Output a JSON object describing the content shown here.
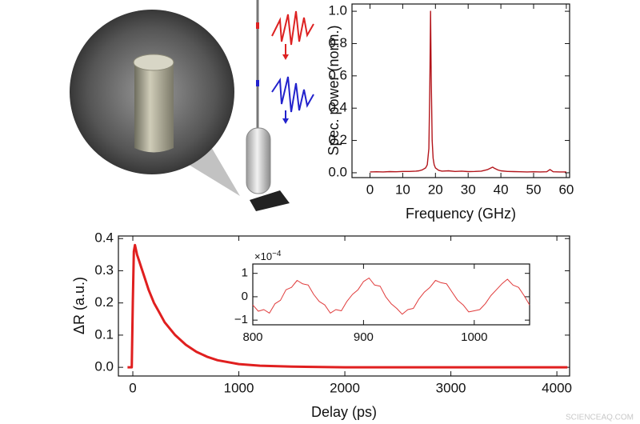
{
  "chart_data": [
    {
      "type": "line",
      "x_label": "Frequency (GHz)",
      "y_label": "Spec. power (norm.)",
      "color": "#b3151b",
      "xlim": [
        -5.5,
        61
      ],
      "ylim": [
        -0.03,
        1.045
      ],
      "xticks": [
        0,
        10,
        20,
        30,
        40,
        50,
        60
      ],
      "yticks": [
        {
          "value": 0,
          "label": "0.0"
        },
        0.2,
        0.4,
        0.6,
        0.8,
        {
          "value": 1,
          "label": "1.0"
        }
      ],
      "x": [
        0,
        2,
        4,
        6,
        8,
        10,
        12,
        14,
        15,
        16,
        17,
        17.5,
        18,
        18.3,
        18.5,
        18.7,
        19,
        19.3,
        19.6,
        20,
        21,
        22,
        24,
        26,
        28,
        30,
        32,
        34,
        35,
        36,
        37,
        37.5,
        38,
        39,
        40,
        42,
        44,
        46,
        48,
        50,
        52,
        54,
        55,
        56,
        58,
        60
      ],
      "values": [
        0.005,
        0.006,
        0.005,
        0.007,
        0.006,
        0.008,
        0.008,
        0.01,
        0.012,
        0.018,
        0.03,
        0.05,
        0.15,
        0.55,
        1.0,
        0.6,
        0.2,
        0.09,
        0.05,
        0.03,
        0.015,
        0.01,
        0.012,
        0.008,
        0.01,
        0.007,
        0.008,
        0.01,
        0.015,
        0.02,
        0.03,
        0.035,
        0.028,
        0.018,
        0.012,
        0.008,
        0.007,
        0.006,
        0.005,
        0.006,
        0.005,
        0.006,
        0.02,
        0.006,
        0.005,
        0.005
      ]
    },
    {
      "type": "line",
      "x_label": "Delay (ps)",
      "y_label": "ΔR (a.u.)",
      "color": "#e01f1f",
      "xlim": [
        -136,
        4120
      ],
      "ylim": [
        -0.027,
        0.408
      ],
      "xticks": [
        0,
        1000,
        2000,
        3000,
        4000
      ],
      "yticks": [
        {
          "value": 0,
          "label": "0.0"
        },
        0.1,
        0.2,
        0.3,
        0.4
      ],
      "x": [
        -50,
        -10,
        0,
        10,
        20,
        40,
        60,
        80,
        100,
        150,
        200,
        250,
        300,
        400,
        500,
        600,
        700,
        800,
        1000,
        1200,
        1500,
        2000,
        2500,
        3000,
        3500,
        4000,
        4100
      ],
      "values": [
        0,
        0,
        0.2,
        0.36,
        0.38,
        0.35,
        0.33,
        0.31,
        0.29,
        0.24,
        0.2,
        0.17,
        0.14,
        0.1,
        0.07,
        0.048,
        0.033,
        0.022,
        0.01,
        0.005,
        0.002,
        0,
        0,
        0,
        0,
        0,
        0
      ]
    },
    {
      "type": "line",
      "y_scale_base": "×10",
      "y_scale_exponent": "−4",
      "color": "#e03a3a",
      "xlim": [
        800,
        1050
      ],
      "ylim": [
        -1.2,
        1.4
      ],
      "xticks": [
        800,
        900,
        1000
      ],
      "yticks": [
        1,
        0,
        {
          "value": -1,
          "label": "−1"
        }
      ],
      "x": [
        800,
        805,
        810,
        815,
        820,
        825,
        830,
        835,
        840,
        845,
        850,
        855,
        860,
        865,
        870,
        875,
        880,
        885,
        890,
        895,
        900,
        905,
        910,
        915,
        920,
        925,
        930,
        935,
        940,
        945,
        950,
        955,
        960,
        965,
        970,
        975,
        980,
        985,
        990,
        995,
        1000,
        1005,
        1010,
        1015,
        1020,
        1025,
        1030,
        1035,
        1040,
        1045,
        1050
      ],
      "values": [
        -0.35,
        -0.62,
        -0.55,
        -0.7,
        -0.3,
        -0.15,
        0.3,
        0.4,
        0.7,
        0.55,
        0.5,
        0.1,
        -0.2,
        -0.35,
        -0.7,
        -0.55,
        -0.6,
        -0.2,
        0.1,
        0.3,
        0.65,
        0.8,
        0.5,
        0.45,
        0,
        -0.3,
        -0.5,
        -0.75,
        -0.55,
        -0.5,
        -0.1,
        0.2,
        0.4,
        0.7,
        0.6,
        0.55,
        0.2,
        -0.15,
        -0.35,
        -0.65,
        -0.6,
        -0.55,
        -0.3,
        0.05,
        0.3,
        0.55,
        0.75,
        0.5,
        0.4,
        0.05,
        -0.35
      ]
    }
  ],
  "watermark": "SCIENCEAQ.COM"
}
